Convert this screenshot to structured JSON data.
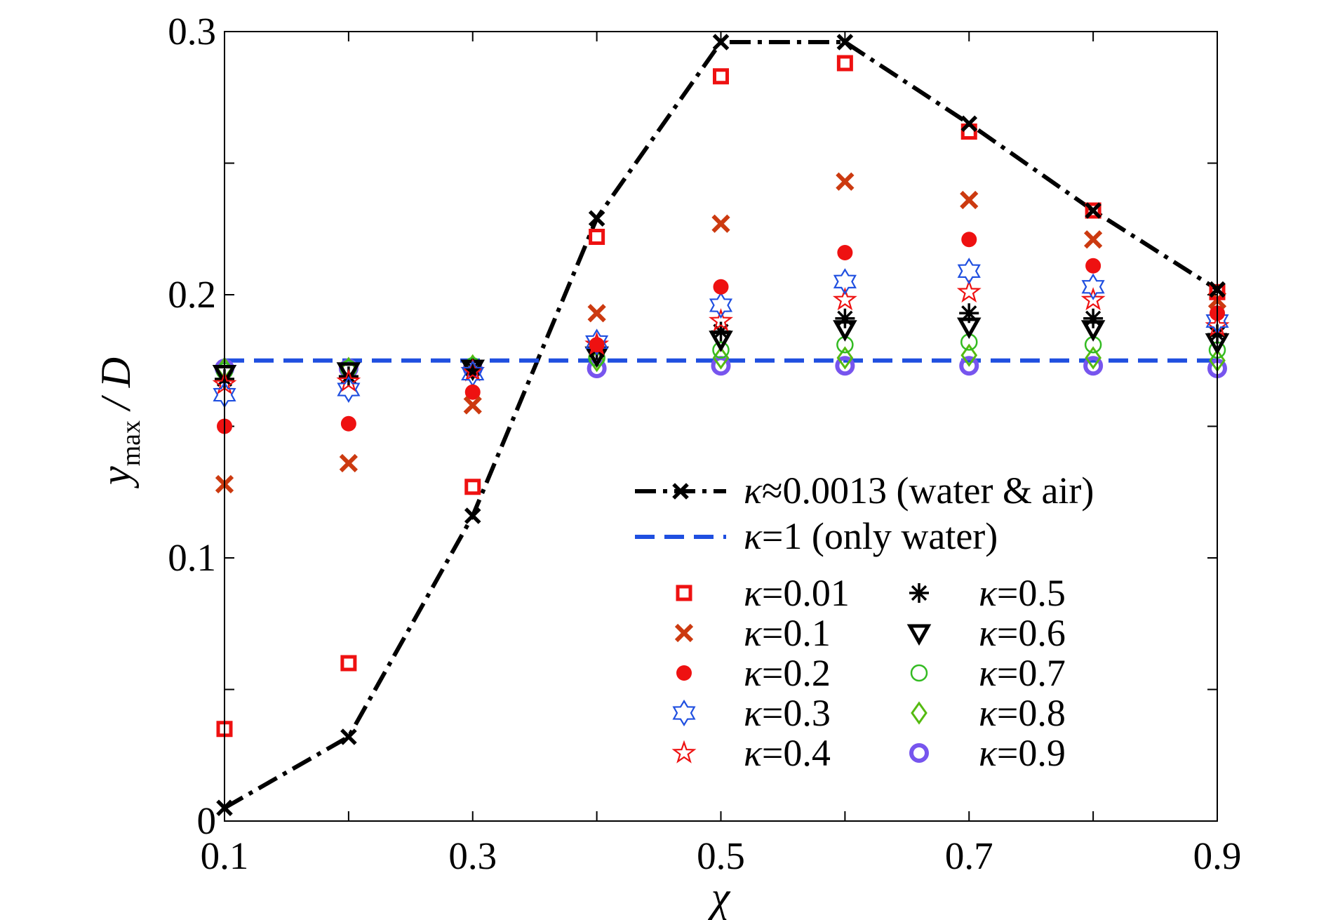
{
  "chart_data": {
    "type": "scatter",
    "xlabel": "χ",
    "ylabel": {
      "main": "y",
      "sub": "max",
      "rest": " / D"
    },
    "xlim": [
      0.1,
      0.9
    ],
    "ylim": [
      0,
      0.3
    ],
    "xticks": [
      0.1,
      0.3,
      0.5,
      0.7,
      0.9
    ],
    "xtick_labels": [
      "0.1",
      "0.3",
      "0.5",
      "0.7",
      "0.9"
    ],
    "yticks": [
      0,
      0.1,
      0.2,
      0.3
    ],
    "ytick_labels": [
      "0",
      "0.1",
      "0.2",
      "0.3"
    ],
    "grid": false,
    "legend_position": "lower-right",
    "x": [
      0.1,
      0.2,
      0.3,
      0.4,
      0.5,
      0.6,
      0.7,
      0.8,
      0.9
    ],
    "series": [
      {
        "name": "κ≈0.0013 (water & air)",
        "label_kappa": "κ",
        "label_rest": "≈0.0013 (water & air)",
        "marker": "x",
        "line": "dashdot",
        "color": "#000000",
        "values": [
          0.005,
          0.032,
          0.116,
          0.229,
          0.296,
          0.296,
          0.265,
          0.232,
          0.202
        ]
      },
      {
        "name": "κ=1 (only water)",
        "label_kappa": "κ",
        "label_rest": "=1 (only water)",
        "marker": "none",
        "line": "dashed",
        "color": "#1f4fe0",
        "values": [
          0.175,
          0.175,
          0.175,
          0.175,
          0.175,
          0.175,
          0.175,
          0.175,
          0.175
        ]
      },
      {
        "name": "κ=0.01",
        "label_kappa": "κ",
        "label_rest": "=0.01",
        "marker": "square",
        "color": "#ee1111",
        "values": [
          0.035,
          0.06,
          0.127,
          0.222,
          0.283,
          0.288,
          0.262,
          0.232,
          0.201
        ]
      },
      {
        "name": "κ=0.1",
        "label_kappa": "κ",
        "label_rest": "=0.1",
        "marker": "x",
        "color": "#cc3a10",
        "values": [
          0.128,
          0.136,
          0.158,
          0.193,
          0.227,
          0.243,
          0.236,
          0.221,
          0.198
        ]
      },
      {
        "name": "κ=0.2",
        "label_kappa": "κ",
        "label_rest": "=0.2",
        "marker": "dot",
        "color": "#ee1111",
        "values": [
          0.15,
          0.151,
          0.163,
          0.181,
          0.203,
          0.216,
          0.221,
          0.211,
          0.193
        ]
      },
      {
        "name": "κ=0.3",
        "label_kappa": "κ",
        "label_rest": "=0.3",
        "marker": "hexagram",
        "color": "#1f4fe0",
        "values": [
          0.162,
          0.164,
          0.17,
          0.182,
          0.196,
          0.205,
          0.209,
          0.203,
          0.19
        ]
      },
      {
        "name": "κ=0.4",
        "label_kappa": "κ",
        "label_rest": "=0.4",
        "marker": "pentagram",
        "color": "#ee1111",
        "values": [
          0.166,
          0.167,
          0.171,
          0.181,
          0.19,
          0.198,
          0.201,
          0.198,
          0.188
        ]
      },
      {
        "name": "κ=0.5",
        "label_kappa": "κ",
        "label_rest": "=0.5",
        "marker": "asterisk",
        "color": "#000000",
        "values": [
          0.168,
          0.169,
          0.172,
          0.179,
          0.186,
          0.191,
          0.193,
          0.191,
          0.185
        ]
      },
      {
        "name": "κ=0.6",
        "label_kappa": "κ",
        "label_rest": "=0.6",
        "marker": "triangle-down",
        "color": "#000000",
        "values": [
          0.17,
          0.171,
          0.172,
          0.177,
          0.183,
          0.187,
          0.188,
          0.187,
          0.182
        ]
      },
      {
        "name": "κ=0.7",
        "label_kappa": "κ",
        "label_rest": "=0.7",
        "marker": "circle",
        "color": "#33bb22",
        "values": [
          0.171,
          0.172,
          0.173,
          0.176,
          0.179,
          0.181,
          0.182,
          0.181,
          0.179
        ]
      },
      {
        "name": "κ=0.8",
        "label_kappa": "κ",
        "label_rest": "=0.8",
        "marker": "diamond",
        "color": "#55bb11",
        "values": [
          0.172,
          0.172,
          0.173,
          0.175,
          0.176,
          0.176,
          0.177,
          0.176,
          0.175
        ]
      },
      {
        "name": "κ=0.9",
        "label_kappa": "κ",
        "label_rest": "=0.9",
        "marker": "ring",
        "color": "#7755ee",
        "values": [
          0.172,
          0.172,
          0.172,
          0.172,
          0.173,
          0.173,
          0.173,
          0.173,
          0.172
        ]
      }
    ]
  }
}
